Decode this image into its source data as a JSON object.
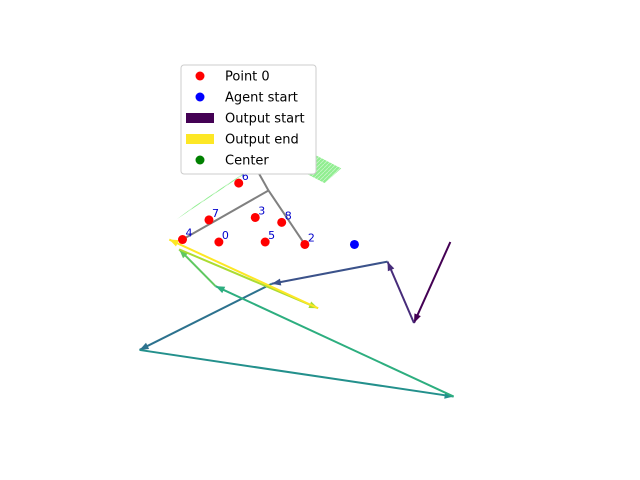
{
  "chart_data": {
    "type": "scatter",
    "title": "",
    "xlabel": "",
    "ylabel": "",
    "axes_visible": false,
    "grid": false,
    "xlim": [
      -5,
      10
    ],
    "ylim": [
      -9,
      6
    ],
    "legend": {
      "placement": "upper-left",
      "entries": [
        {
          "label": "Point 0",
          "kind": "dot",
          "color": "#ff0000"
        },
        {
          "label": "Agent start",
          "kind": "dot",
          "color": "#0000ff"
        },
        {
          "label": "Output start",
          "kind": "bar",
          "color": "#440154"
        },
        {
          "label": "Output end",
          "kind": "bar",
          "color": "#fde725"
        },
        {
          "label": "Center",
          "kind": "dot",
          "color": "#008000"
        }
      ]
    },
    "region": {
      "color": "#90ee90",
      "polygons": [
        [
          [
            0.1,
            2.5
          ],
          [
            0.6,
            3.1
          ],
          [
            2.9,
            1.5
          ],
          [
            2.4,
            0.9
          ]
        ],
        [
          [
            0.0,
            1.3
          ],
          [
            0.5,
            1.8
          ],
          [
            -1.6,
            -0.1
          ],
          [
            -2.1,
            -0.6
          ]
        ]
      ]
    },
    "points": {
      "color": "#ff0000",
      "values": [
        {
          "label": "0",
          "x": -0.8,
          "y": -1.5
        },
        {
          "label": "1",
          "x": 0.2,
          "y": 1.8
        },
        {
          "label": "2",
          "x": 1.8,
          "y": -1.6
        },
        {
          "label": "3",
          "x": 0.3,
          "y": -0.5
        },
        {
          "label": "4",
          "x": -1.9,
          "y": -1.4
        },
        {
          "label": "5",
          "x": 0.6,
          "y": -1.5
        },
        {
          "label": "6",
          "x": -0.2,
          "y": 0.9
        },
        {
          "label": "7",
          "x": -1.1,
          "y": -0.6
        },
        {
          "label": "8",
          "x": 1.1,
          "y": -0.7
        }
      ]
    },
    "hub_lines": {
      "color": "#808080",
      "hub": [
        0.7,
        0.6
      ],
      "ends": [
        [
          0.2,
          1.8
        ],
        [
          1.8,
          -1.6
        ],
        [
          -1.9,
          -1.4
        ]
      ]
    },
    "agent_start": {
      "x": 3.3,
      "y": -1.6,
      "color": "#0000ff"
    },
    "center": {
      "x": 0.7,
      "y": 2.0,
      "color": "#008000"
    },
    "output_path": {
      "colormap": "viridis",
      "points": [
        [
          6.2,
          -1.5
        ],
        [
          5.1,
          -4.8
        ],
        [
          4.3,
          -2.3
        ],
        [
          0.8,
          -3.2
        ],
        [
          -3.2,
          -5.9
        ],
        [
          6.3,
          -7.8
        ],
        [
          -0.9,
          -3.3
        ],
        [
          -2.0,
          -1.8
        ],
        [
          2.2,
          -4.2
        ],
        [
          -2.3,
          -1.4
        ]
      ]
    }
  }
}
